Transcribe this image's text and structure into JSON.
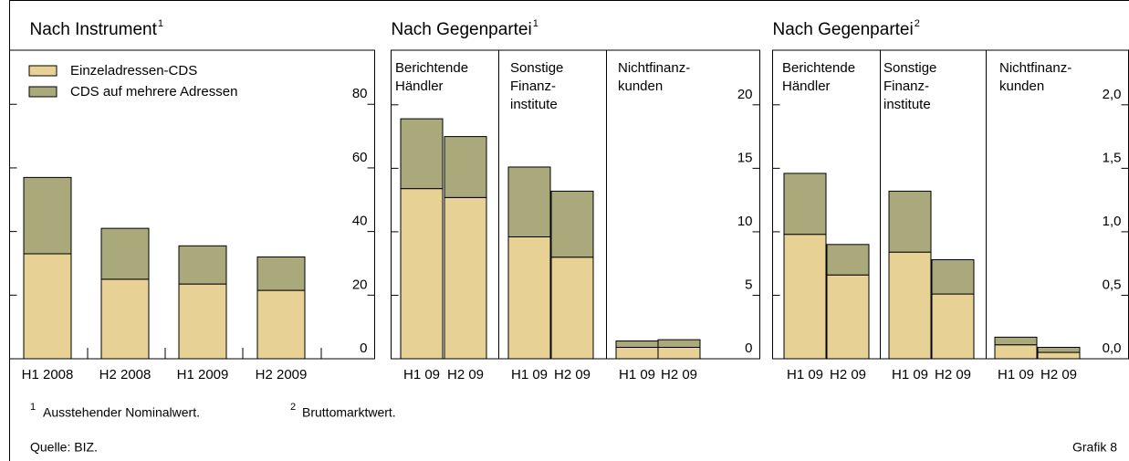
{
  "chart_data": [
    {
      "type": "bar",
      "stacked": true,
      "title": "Nach Instrument",
      "title_note": "1",
      "categories": [
        "H1 2008",
        "H2 2008",
        "H1 2009",
        "H2 2009"
      ],
      "series": [
        {
          "name": "Einzeladressen-CDS",
          "color": "#e8d195",
          "values": [
            33,
            25,
            23.5,
            21.5
          ]
        },
        {
          "name": "CDS auf mehrere Adressen",
          "color": "#a9a97c",
          "values": [
            24,
            16,
            12,
            10.5
          ]
        }
      ],
      "ylim": [
        0,
        97
      ],
      "yticks": [
        0,
        20,
        40,
        60,
        80
      ],
      "legend": "upper left"
    },
    {
      "type": "bar",
      "stacked": true,
      "title": "Nach Gegenpartei",
      "title_note": "1",
      "groups": [
        [
          "Berichtende",
          "Händler"
        ],
        [
          "Sonstige",
          "Finanz-",
          "institute"
        ],
        [
          "Nichtfinanz-",
          "kunden"
        ]
      ],
      "categories": [
        "H1 09",
        "H2 09",
        "H1 09",
        "H2 09",
        "H1 09",
        "H2 09"
      ],
      "series": [
        {
          "color": "#e8d195",
          "values": [
            13.4,
            12.7,
            9.6,
            8,
            0.9,
            0.9
          ]
        },
        {
          "color": "#a9a97c",
          "values": [
            5.5,
            4.8,
            5.5,
            5.2,
            0.5,
            0.6
          ]
        }
      ],
      "ylim": [
        0,
        24.3
      ],
      "yticks": [
        0,
        5,
        10,
        15,
        20
      ]
    },
    {
      "type": "bar",
      "stacked": true,
      "title": "Nach Gegenpartei",
      "title_note": "2",
      "groups": [
        [
          "Berichtende",
          "Händler"
        ],
        [
          "Sonstige",
          "Finanz-",
          "institute"
        ],
        [
          "Nichtfinanz-",
          "kunden"
        ]
      ],
      "categories": [
        "H1 09",
        "H2 09",
        "H1 09",
        "H2 09",
        "H1 09",
        "H2 09"
      ],
      "series": [
        {
          "color": "#e8d195",
          "values": [
            0.98,
            0.66,
            0.84,
            0.51,
            0.11,
            0.05
          ]
        },
        {
          "color": "#a9a97c",
          "values": [
            0.48,
            0.24,
            0.48,
            0.27,
            0.06,
            0.04
          ]
        }
      ],
      "ylim": [
        0,
        2.43
      ],
      "yticks": [
        {
          "value": 0,
          "label": "0,0"
        },
        {
          "value": 0.5,
          "label": "0,5"
        },
        {
          "value": 1,
          "label": "1,0"
        },
        {
          "value": 1.5,
          "label": "1,5"
        },
        {
          "value": 2,
          "label": "2,0"
        }
      ]
    }
  ],
  "footnotes": [
    {
      "mark": "1",
      "text": "Ausstehender Nominalwert."
    },
    {
      "mark": "2",
      "text": "Bruttomarktwert."
    }
  ],
  "source": "Quelle: BIZ.",
  "figure_label": "Grafik 8"
}
